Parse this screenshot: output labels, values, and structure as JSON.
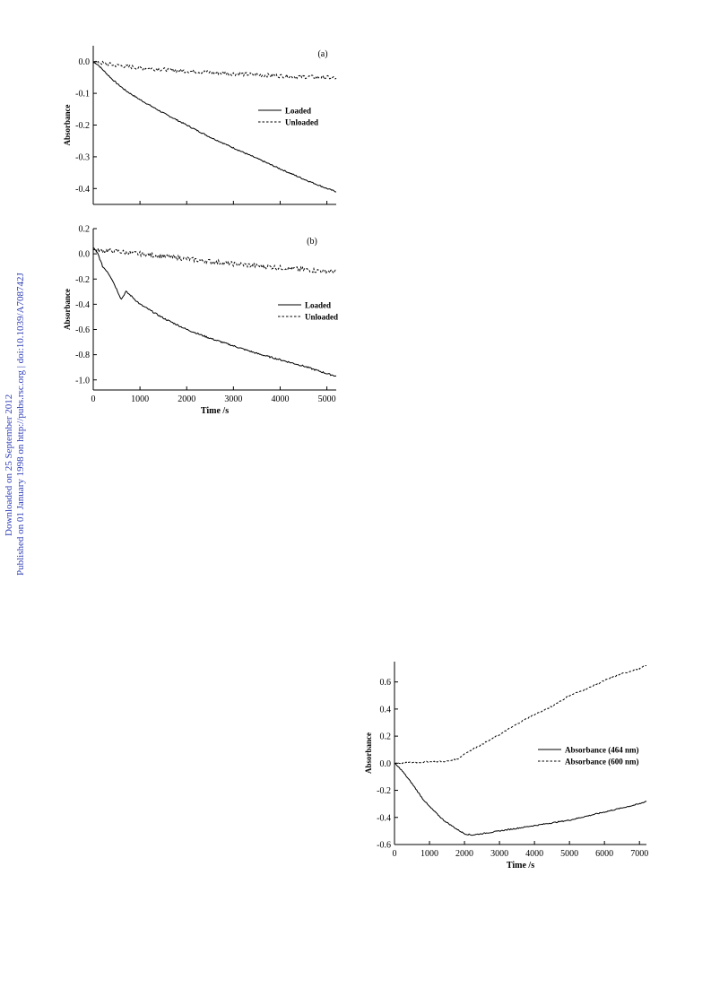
{
  "sidebar": {
    "line1": "Downloaded on 25 September 2012",
    "line2": "Published on 01 January 1998 on http://pubs.rsc.org | doi:10.1039/A708742J",
    "link_color": "#2f3fb5"
  },
  "chart_data": [
    {
      "type": "line",
      "panel_label": "(a)",
      "ylabel": "Absorbance",
      "xlabel": "",
      "xlim": [
        0,
        5200
      ],
      "ylim": [
        -0.45,
        0.05
      ],
      "xticks": [
        0,
        1000,
        2000,
        3000,
        4000,
        5000
      ],
      "xtick_labels": [],
      "yticks": [
        0.0,
        -0.1,
        -0.2,
        -0.3,
        -0.4
      ],
      "ytick_labels": [
        "0.0",
        "-0.1",
        "-0.2",
        "-0.3",
        "-0.4"
      ],
      "legend_position": "right",
      "series": [
        {
          "name": "Loaded",
          "style": "solid",
          "noise": 0.002,
          "points": [
            [
              0,
              0.0
            ],
            [
              100,
              -0.01
            ],
            [
              200,
              -0.025
            ],
            [
              300,
              -0.04
            ],
            [
              400,
              -0.055
            ],
            [
              500,
              -0.068
            ],
            [
              700,
              -0.092
            ],
            [
              1000,
              -0.12
            ],
            [
              1500,
              -0.162
            ],
            [
              2000,
              -0.2
            ],
            [
              2500,
              -0.238
            ],
            [
              3000,
              -0.272
            ],
            [
              3500,
              -0.305
            ],
            [
              4000,
              -0.338
            ],
            [
              4500,
              -0.37
            ],
            [
              5000,
              -0.4
            ],
            [
              5200,
              -0.41
            ]
          ]
        },
        {
          "name": "Unloaded",
          "style": "dashed",
          "noise": 0.006,
          "points": [
            [
              0,
              0.0
            ],
            [
              500,
              -0.012
            ],
            [
              1000,
              -0.02
            ],
            [
              2000,
              -0.03
            ],
            [
              3000,
              -0.038
            ],
            [
              4000,
              -0.045
            ],
            [
              5000,
              -0.05
            ],
            [
              5200,
              -0.052
            ]
          ]
        }
      ]
    },
    {
      "type": "line",
      "panel_label": "(b)",
      "ylabel": "Absorbance",
      "xlabel": "Time /s",
      "xlim": [
        0,
        5200
      ],
      "ylim": [
        -1.08,
        0.2
      ],
      "xticks": [
        0,
        1000,
        2000,
        3000,
        4000,
        5000
      ],
      "xtick_labels": [
        "0",
        "1000",
        "2000",
        "3000",
        "4000",
        "5000"
      ],
      "yticks": [
        0.2,
        0.0,
        -0.2,
        -0.4,
        -0.6,
        -0.8,
        -1.0
      ],
      "ytick_labels": [
        "0.2",
        "0.0",
        "-0.2",
        "-0.4",
        "-0.6",
        "-0.8",
        "-1.0"
      ],
      "legend_position": "right",
      "series": [
        {
          "name": "Loaded",
          "style": "solid",
          "noise": 0.006,
          "points": [
            [
              0,
              0.05
            ],
            [
              100,
              0.0
            ],
            [
              200,
              -0.1
            ],
            [
              300,
              -0.14
            ],
            [
              400,
              -0.2
            ],
            [
              500,
              -0.28
            ],
            [
              600,
              -0.36
            ],
            [
              700,
              -0.3
            ],
            [
              800,
              -0.33
            ],
            [
              1000,
              -0.4
            ],
            [
              1500,
              -0.51
            ],
            [
              2000,
              -0.6
            ],
            [
              2500,
              -0.67
            ],
            [
              3000,
              -0.73
            ],
            [
              3500,
              -0.79
            ],
            [
              4000,
              -0.84
            ],
            [
              4500,
              -0.89
            ],
            [
              5000,
              -0.95
            ],
            [
              5200,
              -0.97
            ]
          ]
        },
        {
          "name": "Unloaded",
          "style": "dashed",
          "noise": 0.018,
          "points": [
            [
              0,
              0.03
            ],
            [
              500,
              0.02
            ],
            [
              1000,
              0.0
            ],
            [
              2000,
              -0.04
            ],
            [
              3000,
              -0.08
            ],
            [
              4000,
              -0.11
            ],
            [
              5000,
              -0.14
            ],
            [
              5200,
              -0.14
            ]
          ]
        }
      ]
    },
    {
      "type": "line",
      "panel_label": "",
      "ylabel": "Absorbance",
      "xlabel": "Time /s",
      "xlim": [
        0,
        7200
      ],
      "ylim": [
        -0.6,
        0.75
      ],
      "xticks": [
        0,
        1000,
        2000,
        3000,
        4000,
        5000,
        6000,
        7000
      ],
      "xtick_labels": [
        "0",
        "1000",
        "2000",
        "3000",
        "4000",
        "5000",
        "6000",
        "7000"
      ],
      "yticks": [
        0.6,
        0.4,
        0.2,
        0.0,
        -0.2,
        -0.4,
        -0.6
      ],
      "ytick_labels": [
        "0.6",
        "0.4",
        "0.2",
        "0.0",
        "-0.2",
        "-0.4",
        "-0.6"
      ],
      "legend_position": "right",
      "series": [
        {
          "name": "Absorbance (464 nm)",
          "style": "solid",
          "noise": 0.004,
          "points": [
            [
              0,
              0.0
            ],
            [
              200,
              -0.05
            ],
            [
              500,
              -0.15
            ],
            [
              800,
              -0.26
            ],
            [
              1000,
              -0.32
            ],
            [
              1400,
              -0.42
            ],
            [
              1800,
              -0.49
            ],
            [
              2000,
              -0.52
            ],
            [
              2200,
              -0.53
            ],
            [
              2500,
              -0.52
            ],
            [
              3000,
              -0.5
            ],
            [
              4000,
              -0.46
            ],
            [
              5000,
              -0.42
            ],
            [
              6000,
              -0.36
            ],
            [
              7000,
              -0.3
            ],
            [
              7200,
              -0.28
            ]
          ]
        },
        {
          "name": "Absorbance (600 nm)",
          "style": "dashed",
          "noise": 0.005,
          "points": [
            [
              0,
              0.0
            ],
            [
              500,
              0.005
            ],
            [
              1000,
              0.01
            ],
            [
              1500,
              0.015
            ],
            [
              1800,
              0.03
            ],
            [
              2000,
              0.07
            ],
            [
              2500,
              0.14
            ],
            [
              3000,
              0.21
            ],
            [
              3500,
              0.29
            ],
            [
              4000,
              0.36
            ],
            [
              4500,
              0.42
            ],
            [
              5000,
              0.5
            ],
            [
              5500,
              0.55
            ],
            [
              6000,
              0.61
            ],
            [
              6500,
              0.66
            ],
            [
              7000,
              0.7
            ],
            [
              7200,
              0.72
            ]
          ]
        }
      ]
    }
  ]
}
